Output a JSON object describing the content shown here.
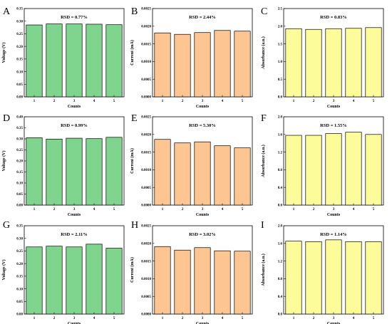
{
  "colors": {
    "voltage": "#7fd58e",
    "current": "#fcc592",
    "absorbance": "#fdfc9a",
    "edge": "#000000"
  },
  "chart_data": [
    {
      "panel": "A",
      "type": "bar",
      "annotation": "RSD = 0.77%",
      "categories": [
        "1",
        "2",
        "3",
        "4",
        "5"
      ],
      "values": [
        0.285,
        0.289,
        0.289,
        0.288,
        0.286
      ],
      "xlabel": "Counts",
      "ylabel": "Voltage (V)",
      "ylim": [
        0,
        0.35
      ],
      "yticks": [
        "0.00",
        "0.05",
        "0.10",
        "0.15",
        "0.20",
        "0.25",
        "0.30",
        "0.35"
      ],
      "color": "voltage"
    },
    {
      "panel": "B",
      "type": "bar",
      "annotation": "RSD = 2.44%",
      "categories": [
        "1",
        "2",
        "3",
        "4",
        "5"
      ],
      "values": [
        0.00181,
        0.00177,
        0.00182,
        0.00188,
        0.00186
      ],
      "xlabel": "Counts",
      "ylabel": "Current (mA)",
      "ylim": [
        0,
        0.0025
      ],
      "yticks": [
        "0.0000",
        "0.0005",
        "0.0010",
        "0.0015",
        "0.0020",
        "0.0025"
      ],
      "color": "current"
    },
    {
      "panel": "C",
      "type": "bar",
      "annotation": "RSD = 0.83%",
      "categories": [
        "1",
        "2",
        "3",
        "4",
        "5"
      ],
      "values": [
        1.93,
        1.91,
        1.93,
        1.94,
        1.96
      ],
      "xlabel": "Counts",
      "ylabel": "Absorbance (a.u.)",
      "ylim": [
        0,
        2.5
      ],
      "yticks": [
        "0.0",
        "0.5",
        "1.0",
        "1.5",
        "2.0",
        "2.5"
      ],
      "color": "absorbance"
    },
    {
      "panel": "D",
      "type": "bar",
      "annotation": "RSD = 0.99%",
      "categories": [
        "1",
        "2",
        "3",
        "4",
        "5"
      ],
      "values": [
        0.305,
        0.299,
        0.303,
        0.301,
        0.307
      ],
      "xlabel": "Counts",
      "ylabel": "Voltage (V)",
      "ylim": [
        0,
        0.4
      ],
      "yticks": [
        "0.00",
        "0.05",
        "0.10",
        "0.15",
        "0.20",
        "0.25",
        "0.30",
        "0.35",
        "0.40"
      ],
      "color": "voltage"
    },
    {
      "panel": "E",
      "type": "bar",
      "annotation": "RSD = 5.30%",
      "categories": [
        "1",
        "2",
        "3",
        "4",
        "5"
      ],
      "values": [
        0.00186,
        0.00176,
        0.00179,
        0.00168,
        0.00162
      ],
      "xlabel": "Counts",
      "ylabel": "Current (mA)",
      "ylim": [
        0,
        0.0025
      ],
      "yticks": [
        "0.0000",
        "0.0005",
        "0.0010",
        "0.0015",
        "0.0020",
        "0.0025"
      ],
      "color": "current"
    },
    {
      "panel": "F",
      "type": "bar",
      "annotation": "RSD = 1.55%",
      "categories": [
        "1",
        "2",
        "3",
        "4",
        "5"
      ],
      "values": [
        1.58,
        1.58,
        1.62,
        1.65,
        1.6
      ],
      "xlabel": "Counts",
      "ylabel": "Absorbance (a.u.)",
      "ylim": [
        0,
        2.0
      ],
      "yticks": [
        "0.0",
        "0.4",
        "0.8",
        "1.2",
        "1.6",
        "2.0"
      ],
      "color": "absorbance"
    },
    {
      "panel": "G",
      "type": "bar",
      "annotation": "RSD = 2.11%",
      "categories": [
        "1",
        "2",
        "3",
        "4",
        "5"
      ],
      "values": [
        0.266,
        0.269,
        0.266,
        0.277,
        0.261
      ],
      "xlabel": "Counts",
      "ylabel": "Voltage (V)",
      "ylim": [
        0,
        0.35
      ],
      "yticks": [
        "0.00",
        "0.05",
        "0.10",
        "0.15",
        "0.20",
        "0.25",
        "0.30",
        "0.35"
      ],
      "color": "voltage"
    },
    {
      "panel": "H",
      "type": "bar",
      "annotation": "RSD = 3.02%",
      "categories": [
        "1",
        "2",
        "3",
        "4",
        "5"
      ],
      "values": [
        0.00191,
        0.00181,
        0.00188,
        0.00179,
        0.00178
      ],
      "xlabel": "Counts",
      "ylabel": "Current (mA)",
      "ylim": [
        0,
        0.0025
      ],
      "yticks": [
        "0.0000",
        "0.0005",
        "0.0010",
        "0.0015",
        "0.0020",
        "0.0025"
      ],
      "color": "current"
    },
    {
      "panel": "I",
      "type": "bar",
      "annotation": "RSD = 1.14%",
      "categories": [
        "1",
        "2",
        "3",
        "4",
        "5"
      ],
      "values": [
        1.65,
        1.64,
        1.68,
        1.64,
        1.64
      ],
      "xlabel": "Counts",
      "ylabel": "Absorbance (a.u.)",
      "ylim": [
        0,
        2.0
      ],
      "yticks": [
        "0.0",
        "0.4",
        "0.8",
        "1.2",
        "1.6",
        "2.0"
      ],
      "color": "absorbance"
    }
  ]
}
